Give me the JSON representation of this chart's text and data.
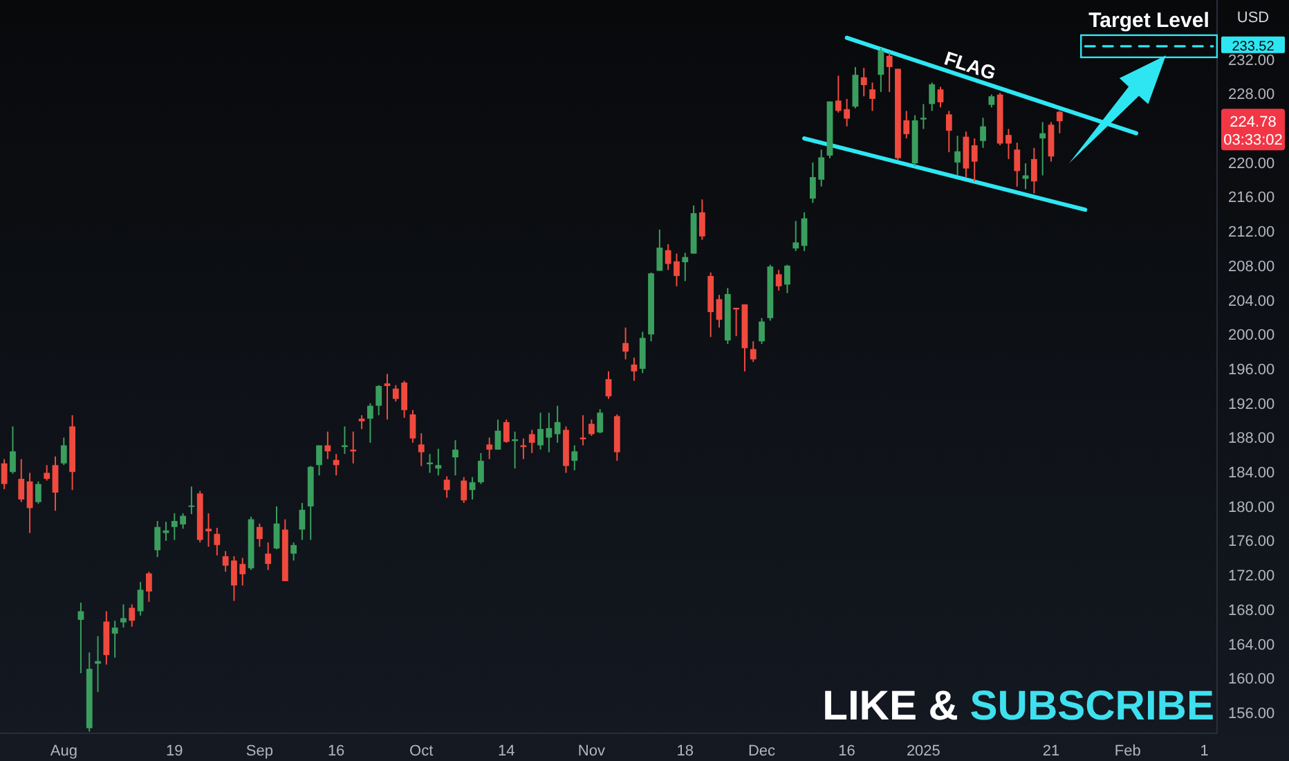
{
  "chart_data": {
    "type": "candlestick",
    "categories": [
      null,
      null,
      null,
      null,
      null,
      null,
      null,
      "Aug",
      null,
      null,
      null,
      null,
      null,
      null,
      null,
      null,
      null,
      null,
      null,
      null,
      "19",
      null,
      null,
      null,
      null,
      null,
      null,
      null,
      null,
      null,
      "Sep",
      null,
      null,
      null,
      null,
      null,
      null,
      null,
      null,
      "16",
      null,
      null,
      null,
      null,
      null,
      null,
      null,
      null,
      null,
      "Oct",
      null,
      null,
      null,
      null,
      null,
      null,
      null,
      null,
      null,
      "14",
      null,
      null,
      null,
      null,
      null,
      null,
      null,
      null,
      null,
      "Nov",
      null,
      null,
      null,
      null,
      null,
      null,
      null,
      null,
      null,
      null,
      "18",
      null,
      null,
      null,
      null,
      null,
      null,
      null,
      null,
      "Dec",
      null,
      null,
      null,
      null,
      null,
      null,
      null,
      null,
      null,
      "16",
      null,
      null,
      null,
      null,
      null,
      null,
      null,
      null,
      "2025",
      null,
      null,
      null,
      null,
      null,
      null,
      null,
      null,
      null,
      null,
      null,
      null,
      null,
      null,
      "21",
      null,
      null,
      null,
      null,
      null,
      null,
      null,
      null,
      "Feb",
      null,
      null,
      null,
      null,
      null,
      null,
      null,
      null,
      "1",
      null
    ],
    "ohlc": [
      [
        185.0,
        185.5,
        182.0,
        182.6
      ],
      [
        184.0,
        189.3,
        183.8,
        186.4
      ],
      [
        183.2,
        185.5,
        180.5,
        180.8
      ],
      [
        182.9,
        183.9,
        176.9,
        179.8
      ],
      [
        180.5,
        182.9,
        180.3,
        182.6
      ],
      [
        183.9,
        184.8,
        183.0,
        183.2
      ],
      [
        184.8,
        185.8,
        179.5,
        181.6
      ],
      [
        185.0,
        188.0,
        184.8,
        187.1
      ],
      [
        189.3,
        190.6,
        181.9,
        184.0
      ],
      [
        166.8,
        168.8,
        160.6,
        167.8
      ],
      [
        154.2,
        163.0,
        153.8,
        161.1
      ],
      [
        161.7,
        164.9,
        158.4,
        162.0
      ],
      [
        166.6,
        167.8,
        161.6,
        162.7
      ],
      [
        165.2,
        166.7,
        162.4,
        165.9
      ],
      [
        166.5,
        168.6,
        165.9,
        167.0
      ],
      [
        168.2,
        168.6,
        166.0,
        166.7
      ],
      [
        167.8,
        171.2,
        167.3,
        170.3
      ],
      [
        172.2,
        172.4,
        168.9,
        170.1
      ],
      [
        174.9,
        178.3,
        174.1,
        177.6
      ],
      [
        176.9,
        178.2,
        176.0,
        177.2
      ],
      [
        177.6,
        179.2,
        176.1,
        178.3
      ],
      [
        177.9,
        179.2,
        177.4,
        178.9
      ],
      [
        180.0,
        182.3,
        179.1,
        180.1
      ],
      [
        181.5,
        181.8,
        175.8,
        176.1
      ],
      [
        177.4,
        179.2,
        175.3,
        177.1
      ],
      [
        176.8,
        177.5,
        174.3,
        175.5
      ],
      [
        174.2,
        174.8,
        172.4,
        173.1
      ],
      [
        173.7,
        174.2,
        169.0,
        170.8
      ],
      [
        173.3,
        174.0,
        170.8,
        172.1
      ],
      [
        172.8,
        178.8,
        172.6,
        178.5
      ],
      [
        177.6,
        178.0,
        175.3,
        176.2
      ],
      [
        174.5,
        175.8,
        172.6,
        173.3
      ],
      [
        175.1,
        180.0,
        175.0,
        178.0
      ],
      [
        177.3,
        178.5,
        171.3,
        171.3
      ],
      [
        174.5,
        175.8,
        173.7,
        175.5
      ],
      [
        177.3,
        180.4,
        176.1,
        179.6
      ],
      [
        180.0,
        184.7,
        176.1,
        184.6
      ],
      [
        184.8,
        187.1,
        183.6,
        187.1
      ],
      [
        187.1,
        188.7,
        185.5,
        186.4
      ],
      [
        185.4,
        186.1,
        183.6,
        184.8
      ],
      [
        186.9,
        189.3,
        186.1,
        187.1
      ],
      [
        186.6,
        188.7,
        185.0,
        186.4
      ],
      [
        190.2,
        190.6,
        189.0,
        189.9
      ],
      [
        190.2,
        192.0,
        187.4,
        191.7
      ],
      [
        191.7,
        194.1,
        190.6,
        194.0
      ],
      [
        194.3,
        195.4,
        190.1,
        194.0
      ],
      [
        193.7,
        194.1,
        192.2,
        192.5
      ],
      [
        194.4,
        194.6,
        190.3,
        191.2
      ],
      [
        190.7,
        191.2,
        187.4,
        187.9
      ],
      [
        187.2,
        188.5,
        184.7,
        186.3
      ],
      [
        184.9,
        186.1,
        183.9,
        185.1
      ],
      [
        184.4,
        186.7,
        183.6,
        184.8
      ],
      [
        183.1,
        183.5,
        181.0,
        181.9
      ],
      [
        185.7,
        187.7,
        183.6,
        186.6
      ],
      [
        183.0,
        183.4,
        180.4,
        180.7
      ],
      [
        181.9,
        183.4,
        180.8,
        182.8
      ],
      [
        182.8,
        186.2,
        182.6,
        185.3
      ],
      [
        187.2,
        188.0,
        185.5,
        186.6
      ],
      [
        186.6,
        190.1,
        186.6,
        188.8
      ],
      [
        189.8,
        190.1,
        187.4,
        187.5
      ],
      [
        187.6,
        188.7,
        184.4,
        187.8
      ],
      [
        187.1,
        187.9,
        185.5,
        186.9
      ],
      [
        188.4,
        188.9,
        186.2,
        187.4
      ],
      [
        187.1,
        190.9,
        186.6,
        189.0
      ],
      [
        188.0,
        190.9,
        186.3,
        189.1
      ],
      [
        188.4,
        191.7,
        187.4,
        189.8
      ],
      [
        188.9,
        189.3,
        183.9,
        184.7
      ],
      [
        185.3,
        187.1,
        184.2,
        186.4
      ],
      [
        188.0,
        190.6,
        187.1,
        187.8
      ],
      [
        189.6,
        190.1,
        188.2,
        188.4
      ],
      [
        188.6,
        191.3,
        188.5,
        190.9
      ],
      [
        194.8,
        195.7,
        192.5,
        192.8
      ],
      [
        190.5,
        190.7,
        185.3,
        186.3
      ],
      [
        199.0,
        200.8,
        197.1,
        198.0
      ],
      [
        196.5,
        197.3,
        194.6,
        195.7
      ],
      [
        196.0,
        200.3,
        195.5,
        199.6
      ],
      [
        200.0,
        207.2,
        199.2,
        207.1
      ],
      [
        207.4,
        212.2,
        207.4,
        210.1
      ],
      [
        209.8,
        210.5,
        207.5,
        208.2
      ],
      [
        208.5,
        209.4,
        205.6,
        206.8
      ],
      [
        208.4,
        209.5,
        206.2,
        209.0
      ],
      [
        209.4,
        215.0,
        209.4,
        214.1
      ],
      [
        214.2,
        215.7,
        211.0,
        211.4
      ],
      [
        206.8,
        207.2,
        199.7,
        202.6
      ],
      [
        204.1,
        204.6,
        200.8,
        201.7
      ],
      [
        199.3,
        205.4,
        198.9,
        204.7
      ],
      [
        203.1,
        203.1,
        199.8,
        202.9
      ],
      [
        203.5,
        203.5,
        195.7,
        198.4
      ],
      [
        198.3,
        199.2,
        196.8,
        197.1
      ],
      [
        199.2,
        201.9,
        198.9,
        201.5
      ],
      [
        201.9,
        208.1,
        201.6,
        207.9
      ],
      [
        207.0,
        207.5,
        205.1,
        205.6
      ],
      [
        205.8,
        208.1,
        204.8,
        208.0
      ],
      [
        210.0,
        213.2,
        209.7,
        210.7
      ],
      [
        210.3,
        214.2,
        209.7,
        213.5
      ],
      [
        215.8,
        220.0,
        215.3,
        218.3
      ],
      [
        218.0,
        221.5,
        217.2,
        220.6
      ],
      [
        220.8,
        227.1,
        220.5,
        227.1
      ],
      [
        227.2,
        230.1,
        225.8,
        226.0
      ],
      [
        226.2,
        227.4,
        224.2,
        225.1
      ],
      [
        226.5,
        231.1,
        226.3,
        230.2
      ],
      [
        229.9,
        231.0,
        227.7,
        229.0
      ],
      [
        228.5,
        229.3,
        226.0,
        227.4
      ],
      [
        230.2,
        233.3,
        228.2,
        233.0
      ],
      [
        232.4,
        232.8,
        228.2,
        231.1
      ],
      [
        230.9,
        230.9,
        220.3,
        220.5
      ],
      [
        224.9,
        226.0,
        222.8,
        223.3
      ],
      [
        219.9,
        225.5,
        219.6,
        224.9
      ],
      [
        225.0,
        226.8,
        223.9,
        225.2
      ],
      [
        226.8,
        229.3,
        226.0,
        229.1
      ],
      [
        228.5,
        228.8,
        226.4,
        227.0
      ],
      [
        225.6,
        226.0,
        221.2,
        223.7
      ],
      [
        220.0,
        223.1,
        218.5,
        221.3
      ],
      [
        223.0,
        223.6,
        218.3,
        219.3
      ],
      [
        222.0,
        222.8,
        217.8,
        220.1
      ],
      [
        222.5,
        225.2,
        221.7,
        224.2
      ],
      [
        226.7,
        227.9,
        226.4,
        227.7
      ],
      [
        227.9,
        228.1,
        222.0,
        222.2
      ],
      [
        223.2,
        223.9,
        220.4,
        222.2
      ],
      [
        221.5,
        222.3,
        217.2,
        219.0
      ],
      [
        218.1,
        219.9,
        216.9,
        218.5
      ],
      [
        220.4,
        221.7,
        216.4,
        217.8
      ],
      [
        222.8,
        224.7,
        218.5,
        223.4
      ],
      [
        224.4,
        224.7,
        220.1,
        220.7
      ],
      [
        225.9,
        226.0,
        223.4,
        224.8
      ],
      null,
      null,
      null,
      null,
      null,
      null,
      null,
      null,
      null,
      null,
      null,
      null,
      null,
      null,
      null,
      null,
      null,
      null
    ],
    "colors": [
      "#f04a3e",
      "#3a9f5e",
      "#f04a3e",
      "#f04a3e",
      "#3a9f5e",
      "#f04a3e",
      "#f04a3e",
      "#3a9f5e",
      "#f04a3e",
      "#3a9f5e",
      "#3a9f5e",
      "#3a9f5e",
      "#f04a3e",
      "#3a9f5e",
      "#3a9f5e",
      "#f04a3e",
      "#3a9f5e",
      "#f04a3e",
      "#3a9f5e",
      "#3a9f5e",
      "#3a9f5e",
      "#3a9f5e",
      "#3a9f5e",
      "#f04a3e",
      "#f04a3e",
      "#f04a3e",
      "#f04a3e",
      "#f04a3e",
      "#f04a3e",
      "#3a9f5e",
      "#f04a3e",
      "#f04a3e",
      "#3a9f5e",
      "#f04a3e",
      "#3a9f5e",
      "#3a9f5e",
      "#3a9f5e",
      "#3a9f5e",
      "#f04a3e",
      "#f04a3e",
      "#3a9f5e",
      "#f04a3e",
      "#f04a3e",
      "#3a9f5e",
      "#3a9f5e",
      "#f04a3e",
      "#f04a3e",
      "#f04a3e",
      "#f04a3e",
      "#f04a3e",
      "#3a9f5e",
      "#3a9f5e",
      "#f04a3e",
      "#3a9f5e",
      "#f04a3e",
      "#3a9f5e",
      "#3a9f5e",
      "#f04a3e",
      "#3a9f5e",
      "#f04a3e",
      "#3a9f5e",
      "#f04a3e",
      "#f04a3e",
      "#3a9f5e",
      "#3a9f5e",
      "#3a9f5e",
      "#f04a3e",
      "#3a9f5e",
      "#f04a3e",
      "#f04a3e",
      "#3a9f5e",
      "#f04a3e",
      "#f04a3e",
      "#f04a3e",
      "#f04a3e",
      "#3a9f5e",
      "#3a9f5e",
      "#3a9f5e",
      "#f04a3e",
      "#f04a3e",
      "#3a9f5e",
      "#3a9f5e",
      "#f04a3e",
      "#f04a3e",
      "#f04a3e",
      "#3a9f5e",
      "#f04a3e",
      "#f04a3e",
      "#f04a3e",
      "#3a9f5e",
      "#3a9f5e",
      "#f04a3e",
      "#3a9f5e",
      "#3a9f5e",
      "#3a9f5e",
      "#3a9f5e",
      "#3a9f5e",
      "#3a9f5e",
      "#f04a3e",
      "#f04a3e",
      "#3a9f5e",
      "#f04a3e",
      "#f04a3e",
      "#3a9f5e",
      "#f04a3e",
      "#f04a3e",
      "#f04a3e",
      "#3a9f5e",
      "#3a9f5e",
      "#3a9f5e",
      "#f04a3e",
      "#f04a3e",
      "#3a9f5e",
      "#f04a3e",
      "#f04a3e",
      "#3a9f5e",
      "#3a9f5e",
      "#f04a3e",
      "#f04a3e",
      "#f04a3e",
      "#3a9f5e",
      "#f04a3e",
      "#3a9f5e",
      "#f04a3e",
      "#f04a3e",
      null,
      null,
      null,
      null,
      null,
      null,
      null,
      null,
      null,
      null,
      null,
      null,
      null,
      null,
      null,
      null,
      null,
      null
    ],
    "series": [
      {
        "type": "line",
        "color": "#2ee6f2",
        "values": [
          null,
          null,
          null,
          null,
          null,
          null,
          null,
          null,
          null,
          null,
          null,
          null,
          null,
          null,
          null,
          null,
          null,
          null,
          null,
          null,
          null,
          null,
          null,
          null,
          null,
          null,
          null,
          null,
          null,
          null,
          null,
          null,
          null,
          null,
          null,
          null,
          null,
          null,
          null,
          null,
          null,
          null,
          null,
          null,
          null,
          null,
          null,
          null,
          null,
          null,
          null,
          null,
          null,
          null,
          null,
          null,
          null,
          null,
          null,
          null,
          null,
          null,
          null,
          null,
          null,
          null,
          null,
          null,
          null,
          null,
          null,
          null,
          null,
          null,
          null,
          null,
          null,
          null,
          null,
          null,
          null,
          null,
          null,
          null,
          null,
          null,
          null,
          null,
          null,
          null,
          null,
          null,
          null,
          null,
          null,
          null,
          null,
          null,
          null,
          234.5,
          null,
          null,
          null,
          null,
          null,
          null,
          null,
          null,
          null,
          null,
          null,
          null,
          null,
          null,
          null,
          null,
          null,
          null,
          null,
          null,
          null,
          null,
          null,
          null,
          null,
          null,
          null,
          null,
          null,
          null,
          null,
          null,
          null,
          223.4,
          null,
          null,
          null,
          null,
          null,
          null,
          null,
          null,
          null
        ]
      },
      {
        "type": "line",
        "color": "#2ee6f2",
        "values": [
          null,
          null,
          null,
          null,
          null,
          null,
          null,
          null,
          null,
          null,
          null,
          null,
          null,
          null,
          null,
          null,
          null,
          null,
          null,
          null,
          null,
          null,
          null,
          null,
          null,
          null,
          null,
          null,
          null,
          null,
          null,
          null,
          null,
          null,
          null,
          null,
          null,
          null,
          null,
          null,
          null,
          null,
          null,
          null,
          null,
          null,
          null,
          null,
          null,
          null,
          null,
          null,
          null,
          null,
          null,
          null,
          null,
          null,
          null,
          null,
          null,
          null,
          null,
          null,
          null,
          null,
          null,
          null,
          null,
          null,
          null,
          null,
          null,
          null,
          null,
          null,
          null,
          null,
          null,
          null,
          null,
          null,
          null,
          null,
          null,
          null,
          null,
          null,
          null,
          null,
          null,
          null,
          null,
          null,
          222.8,
          null,
          null,
          null,
          null,
          null,
          null,
          null,
          null,
          null,
          null,
          null,
          null,
          null,
          null,
          null,
          null,
          null,
          null,
          null,
          null,
          null,
          null,
          null,
          null,
          null,
          null,
          null,
          null,
          null,
          null,
          null,
          null,
          214.5,
          null,
          null,
          null,
          null,
          null,
          null,
          null,
          null,
          null,
          null,
          null,
          null,
          null,
          null,
          null
        ]
      },
      {
        "type": "line",
        "name": "Target Level",
        "color": "#2ee6f2",
        "line_style": "dashed",
        "values": [
          null,
          null,
          null,
          null,
          null,
          null,
          null,
          null,
          null,
          null,
          null,
          null,
          null,
          null,
          null,
          null,
          null,
          null,
          null,
          null,
          null,
          null,
          null,
          null,
          null,
          null,
          null,
          null,
          null,
          null,
          null,
          null,
          null,
          null,
          null,
          null,
          null,
          null,
          null,
          null,
          null,
          null,
          null,
          null,
          null,
          null,
          null,
          null,
          null,
          null,
          null,
          null,
          null,
          null,
          null,
          null,
          null,
          null,
          null,
          null,
          null,
          null,
          null,
          null,
          null,
          null,
          null,
          null,
          null,
          null,
          null,
          null,
          null,
          null,
          null,
          null,
          null,
          null,
          null,
          null,
          null,
          null,
          null,
          null,
          null,
          null,
          null,
          null,
          null,
          null,
          null,
          null,
          null,
          null,
          null,
          null,
          null,
          null,
          null,
          null,
          null,
          null,
          null,
          null,
          null,
          null,
          null,
          null,
          null,
          null,
          null,
          null,
          null,
          null,
          null,
          null,
          null,
          null,
          null,
          null,
          null,
          null,
          null,
          null,
          null,
          null,
          null,
          233.52,
          null,
          null,
          null,
          null,
          null,
          null,
          null,
          null,
          null,
          null,
          null,
          null,
          null,
          null,
          233.52
        ],
        "value_labels": [
          null,
          null,
          null,
          null,
          null,
          null,
          null,
          null,
          null,
          null,
          null,
          null,
          null,
          null,
          null,
          null,
          null,
          null,
          null,
          null,
          null,
          null,
          null,
          null,
          null,
          null,
          null,
          null,
          null,
          null,
          null,
          null,
          null,
          null,
          null,
          null,
          null,
          null,
          null,
          null,
          null,
          null,
          null,
          null,
          null,
          null,
          null,
          null,
          null,
          null,
          null,
          null,
          null,
          null,
          null,
          null,
          null,
          null,
          null,
          null,
          null,
          null,
          null,
          null,
          null,
          null,
          null,
          null,
          null,
          null,
          null,
          null,
          null,
          null,
          null,
          null,
          null,
          null,
          null,
          null,
          null,
          null,
          null,
          null,
          null,
          null,
          null,
          null,
          null,
          null,
          null,
          null,
          null,
          null,
          null,
          null,
          null,
          null,
          null,
          null,
          null,
          null,
          null,
          null,
          null,
          null,
          null,
          null,
          null,
          null,
          null,
          null,
          null,
          null,
          null,
          null,
          null,
          null,
          null,
          null,
          null,
          null,
          null,
          null,
          null,
          null,
          null,
          null,
          null,
          null,
          null,
          null,
          null,
          null,
          null,
          null,
          null,
          null,
          null,
          null,
          null,
          null,
          "233.52"
        ]
      }
    ],
    "ylim": [
      153.6,
      238.9
    ],
    "yticks": [
      {
        "value": 156,
        "label": "156.00"
      },
      {
        "value": 160,
        "label": "160.00"
      },
      {
        "value": 164,
        "label": "164.00"
      },
      {
        "value": 168,
        "label": "168.00"
      },
      {
        "value": 172,
        "label": "172.00"
      },
      {
        "value": 176,
        "label": "176.00"
      },
      {
        "value": 180,
        "label": "180.00"
      },
      {
        "value": 184,
        "label": "184.00"
      },
      {
        "value": 188,
        "label": "188.00"
      },
      {
        "value": 192,
        "label": "192.00"
      },
      {
        "value": 196,
        "label": "196.00"
      },
      {
        "value": 200,
        "label": "200.00"
      },
      {
        "value": 204,
        "label": "204.00"
      },
      {
        "value": 208,
        "label": "208.00"
      },
      {
        "value": 212,
        "label": "212.00"
      },
      {
        "value": 216,
        "label": "216.00"
      },
      {
        "value": 220,
        "label": "220.00"
      },
      {
        "value": 228,
        "label": "228.00"
      },
      {
        "value": 232,
        "label": "232.00"
      }
    ],
    "annotations": [
      "USD",
      "FLAG",
      "03:33:02",
      "LIKE & SUBSCRIBE",
      "224.78"
    ]
  }
}
